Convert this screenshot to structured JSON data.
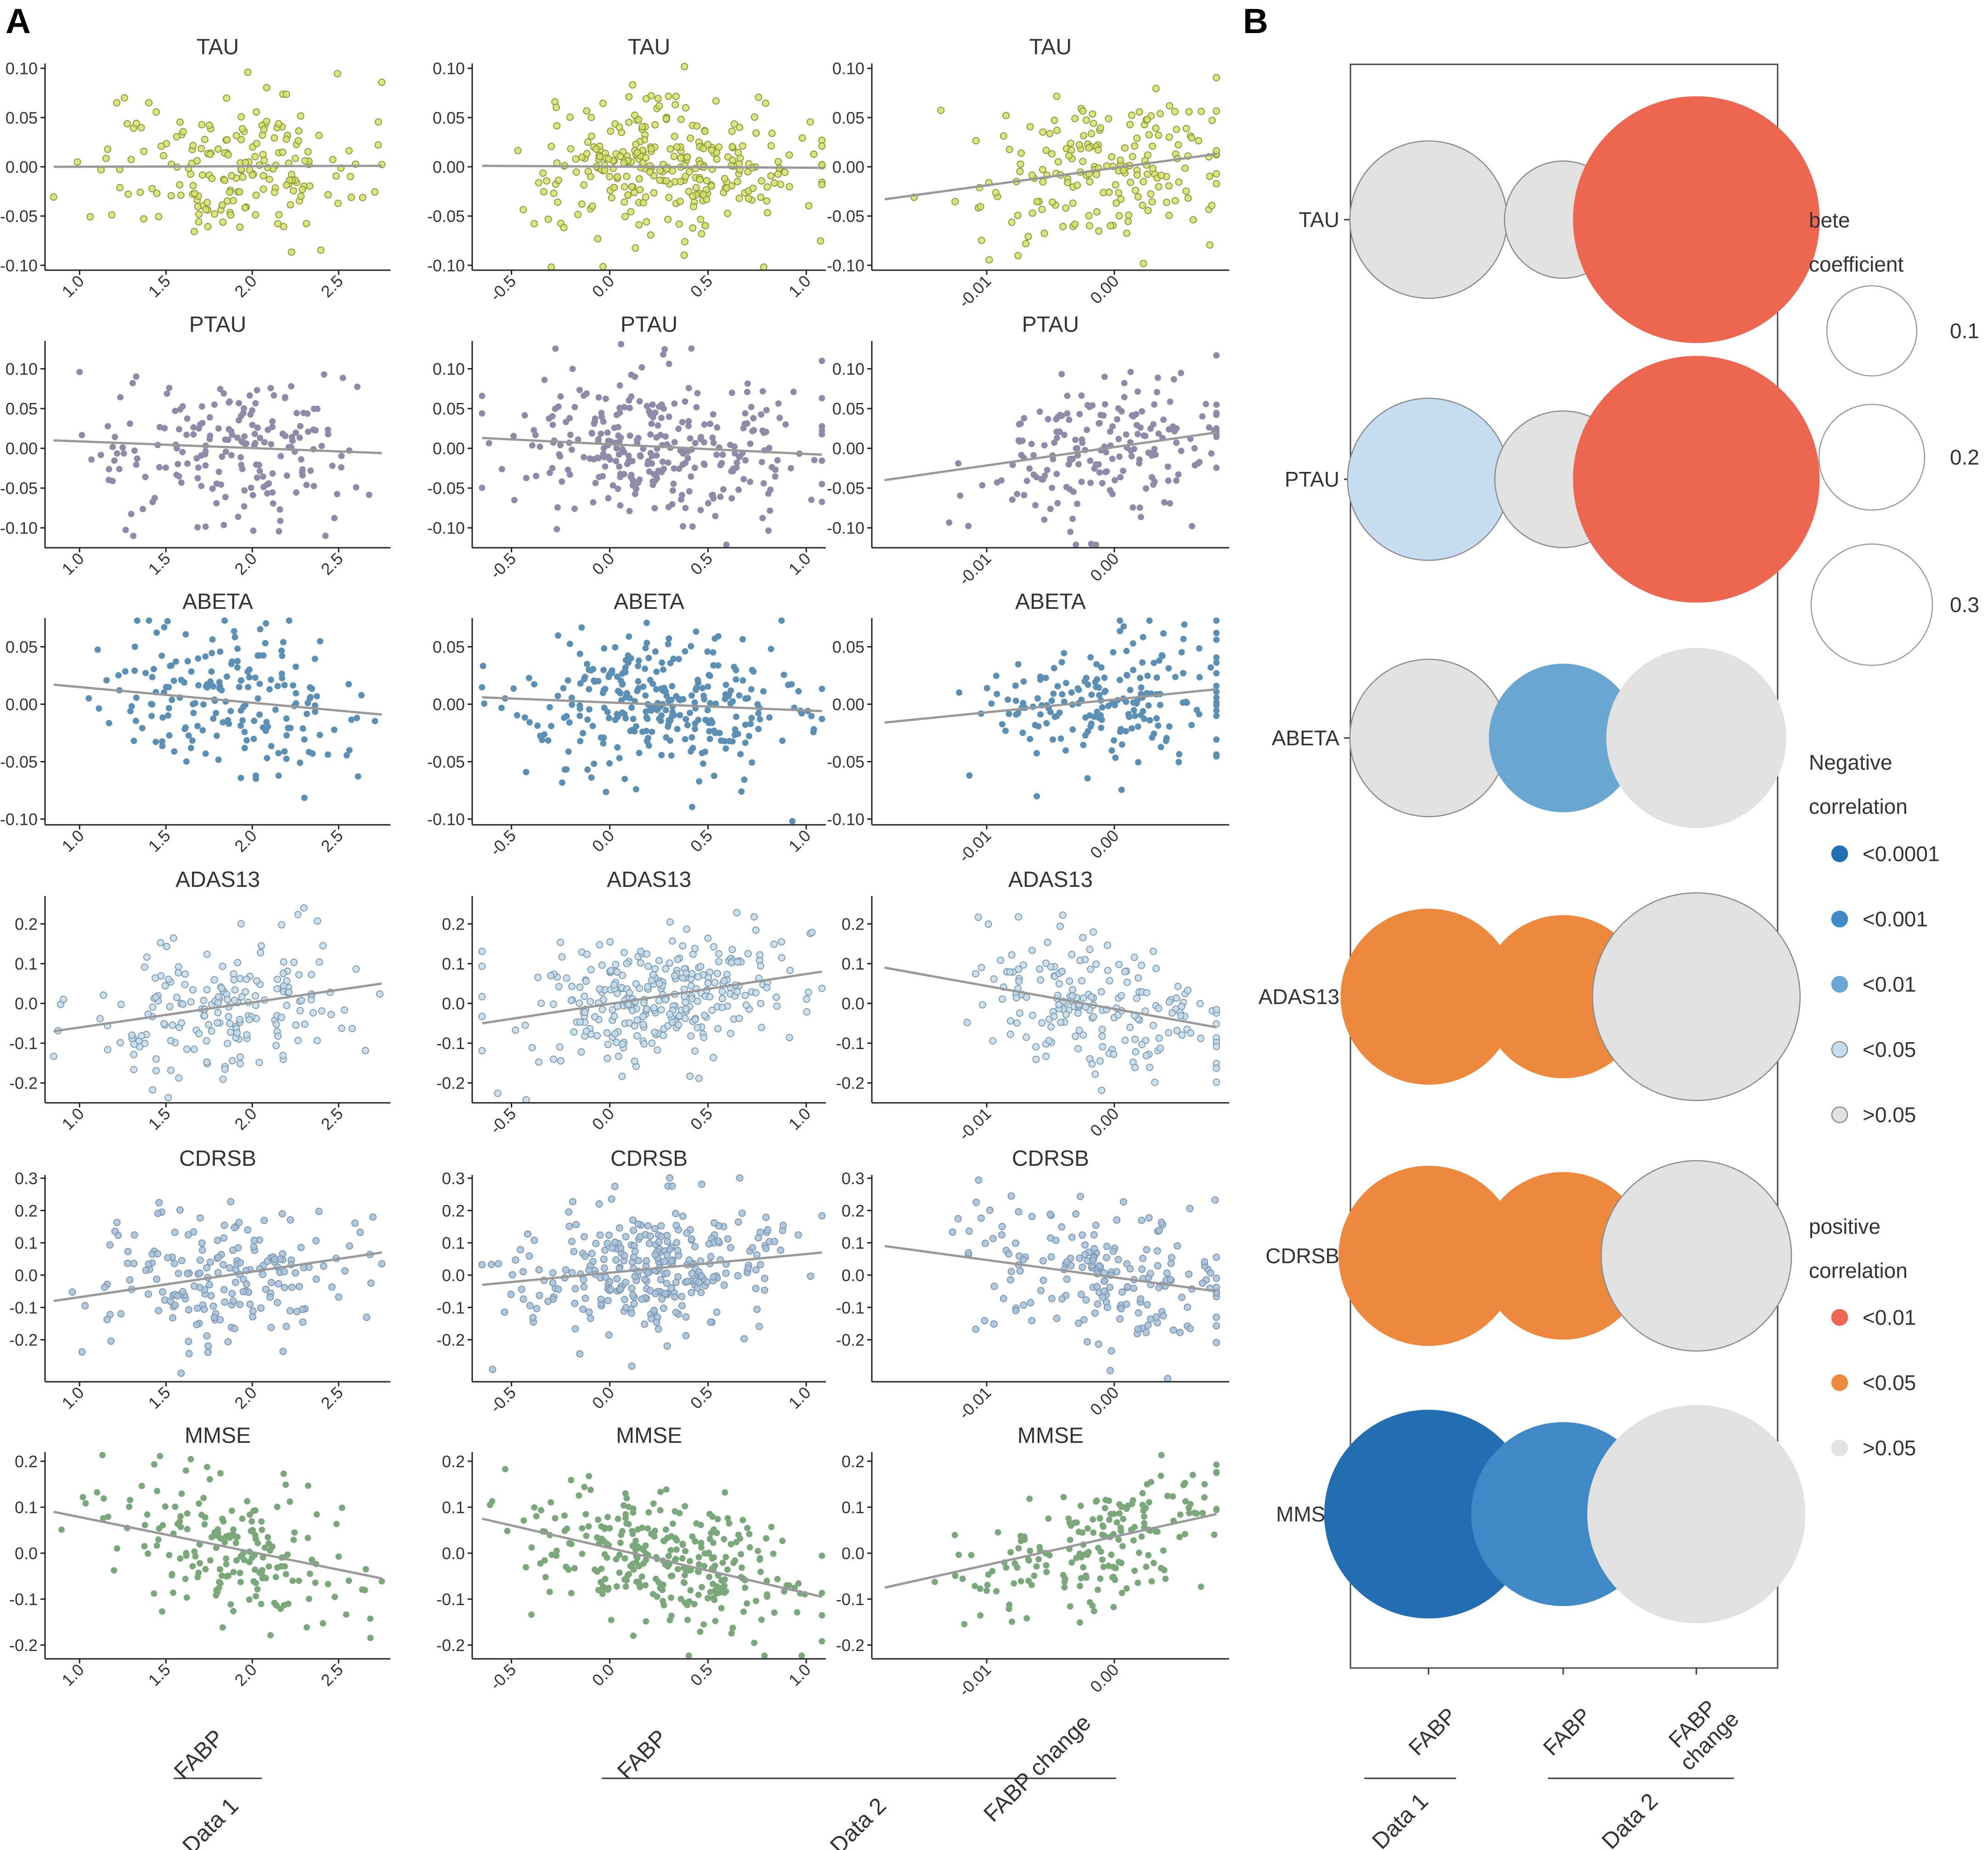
{
  "panels": {
    "A": "A",
    "B": "B"
  },
  "chart_data": [
    {
      "type": "scatter-grid",
      "panel": "A",
      "columns": [
        {
          "key": "d1",
          "group": "Data 1",
          "x_label": "FABP",
          "xlim": [
            0.8,
            2.8
          ],
          "xticks": [
            1.0,
            1.5,
            2.0,
            2.5
          ],
          "x_tick_labels": [
            "1.0",
            "1.5",
            "2.0",
            "2.5"
          ],
          "x_range_points": [
            0.85,
            2.75
          ],
          "point_count": 190
        },
        {
          "key": "d2",
          "group": "Data 2",
          "x_label": "FABP",
          "xlim": [
            -0.7,
            1.1
          ],
          "xticks": [
            -0.5,
            0.0,
            0.5,
            1.0
          ],
          "x_tick_labels": [
            "-0.5",
            "0.0",
            "0.5",
            "1.0"
          ],
          "x_range_points": [
            -0.65,
            1.08
          ],
          "point_count": 300
        },
        {
          "key": "d2c",
          "group": "Data 2",
          "x_label": "FABP change",
          "xlim": [
            -0.019,
            0.009
          ],
          "xticks": [
            -0.01,
            0.0
          ],
          "x_tick_labels": [
            "-0.01",
            "0.00"
          ],
          "x_range_points": [
            -0.018,
            0.008
          ],
          "point_count": 190
        }
      ],
      "rows": [
        {
          "outcome": "TAU",
          "point_fill": "#d7e06a",
          "point_stroke": "#8a9a3a",
          "hollow": true,
          "ylim": [
            -0.105,
            0.105
          ],
          "yticks": [
            -0.1,
            -0.05,
            0.0,
            0.05,
            0.1
          ],
          "y_tick_labels": [
            "-0.10",
            "-0.05",
            "0.00",
            "0.05",
            "0.10"
          ],
          "spread": 0.035,
          "fits": [
            {
              "x": [
                0.85,
                2.75
              ],
              "y": [
                0.0,
                0.001
              ]
            },
            {
              "x": [
                -0.65,
                1.08
              ],
              "y": [
                0.001,
                -0.001
              ]
            },
            {
              "x": [
                -0.018,
                0.008
              ],
              "y": [
                -0.033,
                0.013
              ]
            }
          ]
        },
        {
          "outcome": "PTAU",
          "point_fill": "#8e8aa8",
          "point_stroke": "#8e8aa8",
          "hollow": false,
          "ylim": [
            -0.125,
            0.135
          ],
          "yticks": [
            -0.1,
            -0.05,
            0.0,
            0.05,
            0.1
          ],
          "y_tick_labels": [
            "-0.10",
            "-0.05",
            "0.00",
            "0.05",
            "0.10"
          ],
          "spread": 0.045,
          "fits": [
            {
              "x": [
                0.85,
                2.75
              ],
              "y": [
                0.01,
                -0.006
              ]
            },
            {
              "x": [
                -0.65,
                1.08
              ],
              "y": [
                0.013,
                -0.008
              ]
            },
            {
              "x": [
                -0.018,
                0.008
              ],
              "y": [
                -0.04,
                0.02
              ]
            }
          ]
        },
        {
          "outcome": "ABETA",
          "point_fill": "#5b8fb4",
          "point_stroke": "#5b8fb4",
          "hollow": false,
          "ylim": [
            -0.105,
            0.075
          ],
          "yticks": [
            -0.1,
            -0.05,
            0.0,
            0.05
          ],
          "y_tick_labels": [
            "-0.10",
            "-0.05",
            "0.00",
            "0.05"
          ],
          "spread": 0.03,
          "fits": [
            {
              "x": [
                0.85,
                2.75
              ],
              "y": [
                0.017,
                -0.009
              ]
            },
            {
              "x": [
                -0.65,
                1.08
              ],
              "y": [
                0.006,
                -0.006
              ]
            },
            {
              "x": [
                -0.018,
                0.008
              ],
              "y": [
                -0.016,
                0.013
              ]
            }
          ]
        },
        {
          "outcome": "ADAS13",
          "point_fill": "#c6dbe8",
          "point_stroke": "#7a9cb2",
          "hollow": true,
          "ylim": [
            -0.25,
            0.27
          ],
          "yticks": [
            -0.2,
            -0.1,
            0.0,
            0.1,
            0.2
          ],
          "y_tick_labels": [
            "-0.2",
            "-0.1",
            "0.0",
            "0.1",
            "0.2"
          ],
          "spread": 0.08,
          "fits": [
            {
              "x": [
                0.85,
                2.75
              ],
              "y": [
                -0.07,
                0.05
              ]
            },
            {
              "x": [
                -0.65,
                1.08
              ],
              "y": [
                -0.05,
                0.08
              ]
            },
            {
              "x": [
                -0.018,
                0.008
              ],
              "y": [
                0.09,
                -0.06
              ]
            }
          ]
        },
        {
          "outcome": "CDRSB",
          "point_fill": "#a6bfd6",
          "point_stroke": "#7b97b3",
          "hollow": true,
          "ylim": [
            -0.33,
            0.31
          ],
          "yticks": [
            -0.2,
            -0.1,
            0.0,
            0.1,
            0.2,
            0.3
          ],
          "y_tick_labels": [
            "-0.2",
            "-0.1",
            "0.0",
            "0.1",
            "0.2",
            "0.3"
          ],
          "spread": 0.1,
          "fits": [
            {
              "x": [
                0.85,
                2.75
              ],
              "y": [
                -0.08,
                0.07
              ]
            },
            {
              "x": [
                -0.65,
                1.08
              ],
              "y": [
                -0.03,
                0.07
              ]
            },
            {
              "x": [
                -0.018,
                0.008
              ],
              "y": [
                0.09,
                -0.05
              ]
            }
          ]
        },
        {
          "outcome": "MMSE",
          "point_fill": "#7aa87a",
          "point_stroke": "#7aa87a",
          "hollow": false,
          "ylim": [
            -0.23,
            0.22
          ],
          "yticks": [
            -0.2,
            -0.1,
            0.0,
            0.1,
            0.2
          ],
          "y_tick_labels": [
            "-0.2",
            "-0.1",
            "0.0",
            "0.1",
            "0.2"
          ],
          "spread": 0.07,
          "fits": [
            {
              "x": [
                0.85,
                2.75
              ],
              "y": [
                0.09,
                -0.055
              ]
            },
            {
              "x": [
                -0.65,
                1.08
              ],
              "y": [
                0.075,
                -0.095
              ]
            },
            {
              "x": [
                -0.018,
                0.008
              ],
              "y": [
                -0.075,
                0.085
              ]
            }
          ]
        }
      ],
      "group_labels": [
        "Data 1",
        "Data 2"
      ],
      "line_color": "#999999"
    },
    {
      "type": "bubble-matrix",
      "panel": "B",
      "rows": [
        "TAU",
        "PTAU",
        "ABETA",
        "ADAS13",
        "CDRSB",
        "MMSE"
      ],
      "columns": [
        {
          "label": "FABP",
          "group": "Data 1"
        },
        {
          "label": "FABP",
          "group": "Data 2"
        },
        {
          "label": "FABP change",
          "group": "Data 2"
        }
      ],
      "cells": [
        [
          {
            "beta": 0.12,
            "category": "ns_neg"
          },
          {
            "beta": 0.05,
            "category": "ns_neg"
          },
          {
            "beta": 0.38,
            "category": "pos_p01"
          }
        ],
        [
          {
            "beta": 0.13,
            "category": "neg_p05"
          },
          {
            "beta": 0.08,
            "category": "ns_neg"
          },
          {
            "beta": 0.38,
            "category": "pos_p01"
          }
        ],
        [
          {
            "beta": 0.12,
            "category": "ns_neg"
          },
          {
            "beta": 0.1,
            "category": "neg_p01"
          },
          {
            "beta": 0.17,
            "category": "ns_pos"
          }
        ],
        [
          {
            "beta": 0.16,
            "category": "pos_p05"
          },
          {
            "beta": 0.13,
            "category": "pos_p05"
          },
          {
            "beta": 0.25,
            "category": "ns_neg"
          }
        ],
        [
          {
            "beta": 0.17,
            "category": "pos_p05"
          },
          {
            "beta": 0.14,
            "category": "pos_p05"
          },
          {
            "beta": 0.2,
            "category": "ns_neg"
          }
        ],
        [
          {
            "beta": 0.25,
            "category": "neg_p0001"
          },
          {
            "beta": 0.18,
            "category": "neg_p001"
          },
          {
            "beta": 0.28,
            "category": "ns_pos"
          }
        ]
      ],
      "categories": {
        "neg_p0001": {
          "color": "#236db3",
          "stroke": "#236db3"
        },
        "neg_p001": {
          "color": "#3f8ac6",
          "stroke": "#3f8ac6"
        },
        "neg_p01": {
          "color": "#6aa6d2",
          "stroke": "#6aa6d2"
        },
        "neg_p05": {
          "color": "#c6dcf0",
          "stroke": "#8a8a8a"
        },
        "ns_neg": {
          "color": "#e1e1e1",
          "stroke": "#8a8a8a"
        },
        "pos_p01": {
          "color": "#ec6650",
          "stroke": "#ec6650"
        },
        "pos_p05": {
          "color": "#ee883d",
          "stroke": "#ee883d"
        },
        "ns_pos": {
          "color": "#e1e1e1",
          "stroke": "#e1e1e1"
        }
      },
      "legend": {
        "size_title": [
          "bete",
          "coefficient"
        ],
        "size_entries": [
          {
            "beta": 0.1,
            "label": "0.1"
          },
          {
            "beta": 0.2,
            "label": "0.2"
          },
          {
            "beta": 0.3,
            "label": "0.3"
          }
        ],
        "negative_title": [
          "Negative",
          "correlation"
        ],
        "negative_entries": [
          {
            "label": "<0.0001",
            "color": "#236db3",
            "stroke": "#236db3"
          },
          {
            "label": "<0.001",
            "color": "#3f8ac6",
            "stroke": "#3f8ac6"
          },
          {
            "label": "<0.01",
            "color": "#6aa6d2",
            "stroke": "#6aa6d2"
          },
          {
            "label": "<0.05",
            "color": "#c6dcf0",
            "stroke": "#8a8a8a"
          },
          {
            "label": ">0.05",
            "color": "#e1e1e1",
            "stroke": "#8a8a8a"
          }
        ],
        "positive_title": [
          "positive",
          "correlation"
        ],
        "positive_entries": [
          {
            "label": "<0.01",
            "color": "#ec6650",
            "stroke": "#ec6650"
          },
          {
            "label": "<0.05",
            "color": "#ee883d",
            "stroke": "#ee883d"
          },
          {
            "label": ">0.05",
            "color": "#e1e1e1",
            "stroke": "#e1e1e1"
          }
        ]
      },
      "group_labels": [
        "Data 1",
        "Data 2"
      ]
    }
  ]
}
